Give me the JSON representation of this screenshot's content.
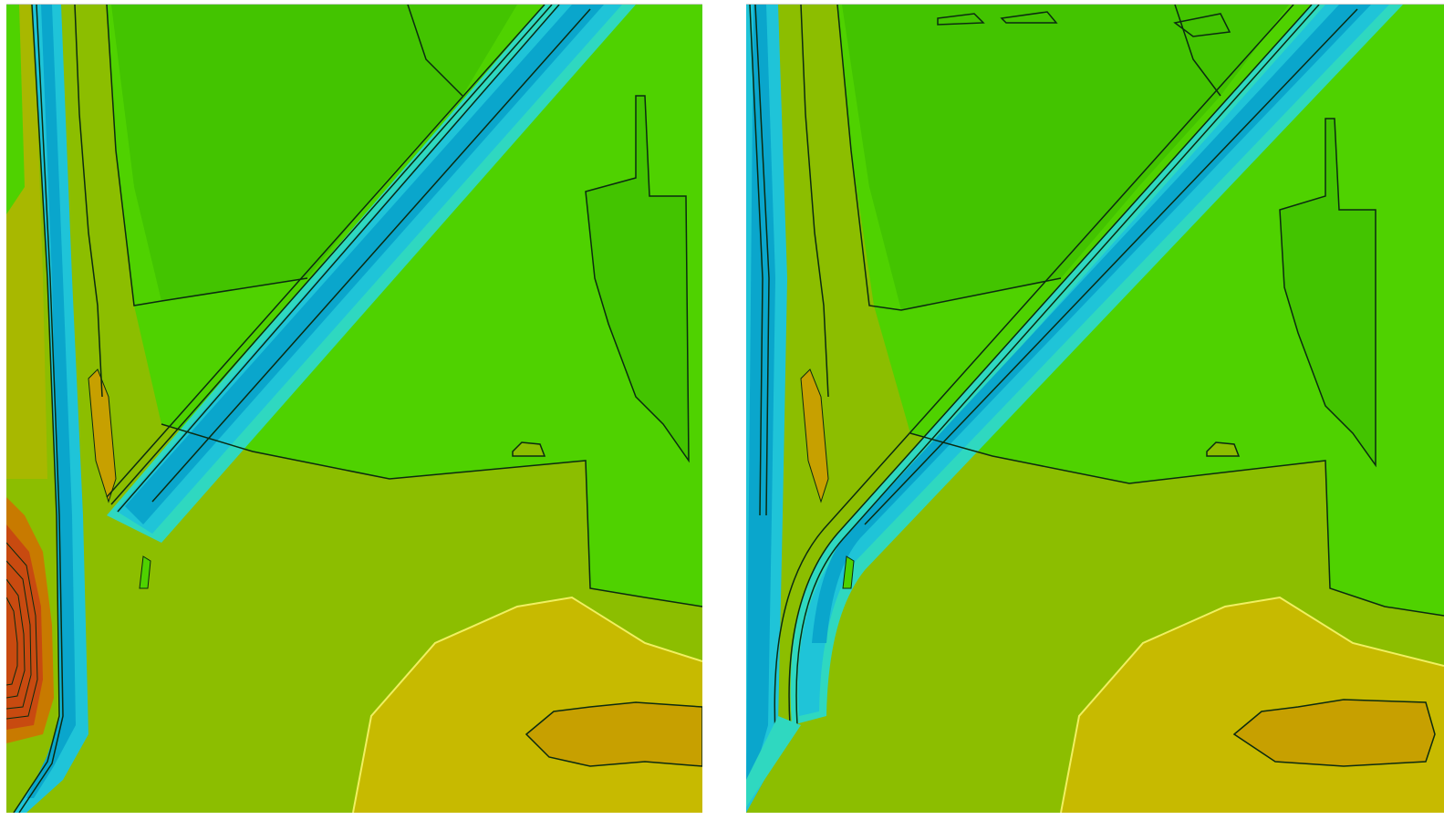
{
  "panels": [
    {
      "id": "before",
      "channel_bend": false
    },
    {
      "id": "after",
      "channel_bend": true
    }
  ],
  "colors": {
    "background": "#ffffff",
    "deep_low": "#0aa6cc",
    "low": "#1fc4d8",
    "cyan_edge": "#2fd8c0",
    "green_light": "#4fd200",
    "green": "#43c400",
    "yellow_green": "#8cbe00",
    "olive": "#a8b800",
    "yellow": "#c7ba00",
    "ochre": "#c7a000",
    "orange": "#c87a00",
    "red_high": "#c84a10",
    "contour": "#0b2a10"
  }
}
